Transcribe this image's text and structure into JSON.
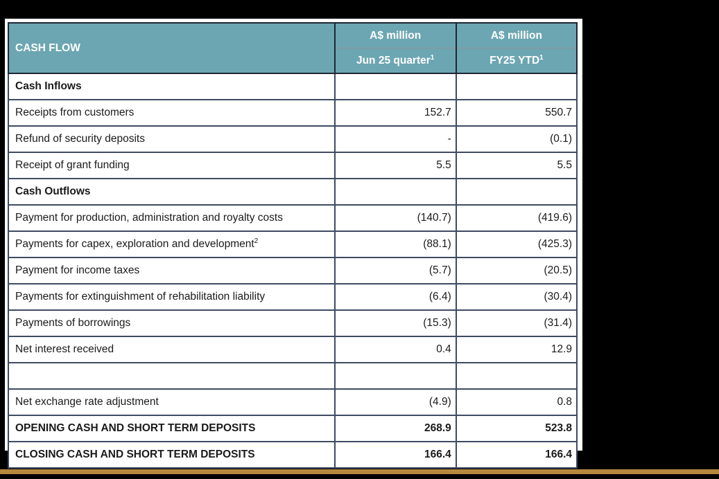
{
  "table": {
    "title": "CASH FLOW",
    "unit_header": "A$ million",
    "columns": [
      {
        "label": "Jun 25 quarter",
        "sup": "1"
      },
      {
        "label": "FY25 YTD",
        "sup": "1"
      }
    ],
    "rows": [
      {
        "label": "Cash Inflows",
        "bold": true,
        "values": [
          "",
          ""
        ]
      },
      {
        "label": "Receipts from customers",
        "values": [
          "152.7",
          "550.7"
        ]
      },
      {
        "label": "Refund of security deposits",
        "values": [
          "-",
          "(0.1)"
        ]
      },
      {
        "label": "Receipt of grant funding",
        "values": [
          "5.5",
          "5.5"
        ]
      },
      {
        "label": "Cash Outflows",
        "bold": true,
        "values": [
          "",
          ""
        ]
      },
      {
        "label": "Payment for production, administration and royalty costs",
        "values": [
          "(140.7)",
          "(419.6)"
        ]
      },
      {
        "label": "Payments for capex, exploration and development",
        "sup": "2",
        "values": [
          "(88.1)",
          "(425.3)"
        ]
      },
      {
        "label": "Payment for income taxes",
        "values": [
          "(5.7)",
          "(20.5)"
        ]
      },
      {
        "label": "Payments for extinguishment of rehabilitation liability",
        "values": [
          "(6.4)",
          "(30.4)"
        ]
      },
      {
        "label": "Payments of borrowings",
        "values": [
          "(15.3)",
          "(31.4)"
        ]
      },
      {
        "label": "Net interest received",
        "values": [
          "0.4",
          "12.9"
        ]
      },
      {
        "label": "",
        "values": [
          "",
          ""
        ]
      },
      {
        "label": "Net exchange rate adjustment",
        "values": [
          "(4.9)",
          "0.8"
        ]
      },
      {
        "label": "OPENING CASH AND SHORT TERM DEPOSITS",
        "bold": true,
        "values": [
          "268.9",
          "523.8"
        ]
      },
      {
        "label": "CLOSING CASH AND SHORT TERM DEPOSITS",
        "bold": true,
        "values": [
          "166.4",
          "166.4"
        ]
      }
    ]
  },
  "colors": {
    "canvas_bg": "#000000",
    "page_bg": "#ffffff",
    "header_bg": "#6ca6b2",
    "header_text": "#ffffff",
    "header_divider": "#8e9399",
    "outer_border": "#1f2433",
    "cell_border": "#3e4a61",
    "text_color": "#1a1a1a",
    "accent_bar": "#b7893f"
  }
}
